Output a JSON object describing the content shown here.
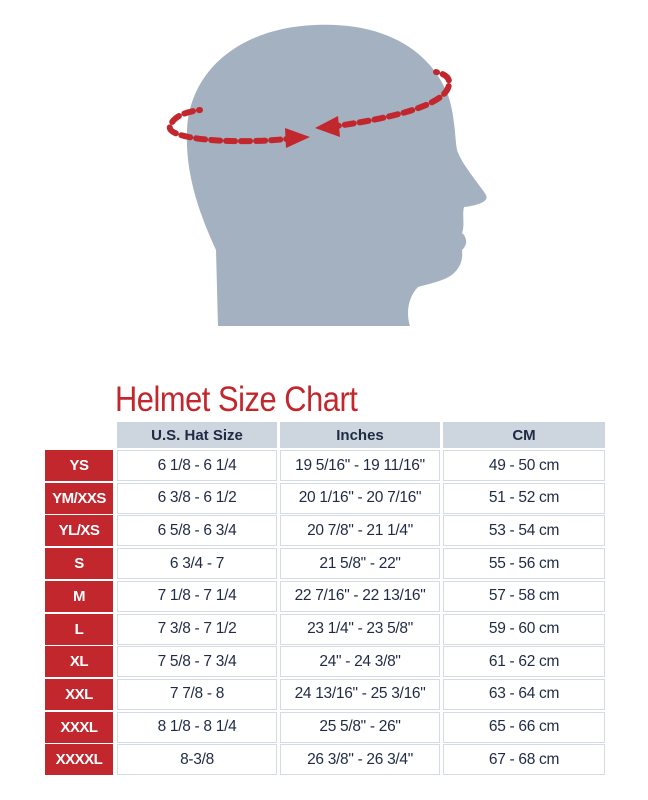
{
  "title": "Helmet Size Chart",
  "colors": {
    "accent": "#c1272d",
    "header_bg": "#cdd6df",
    "head_silhouette": "#a4b1c0",
    "text": "#1f2a44"
  },
  "illustration": {
    "icon": "head-profile-with-measuring-tape"
  },
  "table": {
    "columns": [
      "U.S. Hat Size",
      "Inches",
      "CM"
    ],
    "rows": [
      {
        "size": "YS",
        "hat": "6 1/8 - 6 1/4",
        "inches": "19 5/16\" - 19 11/16\"",
        "cm": "49 - 50 cm"
      },
      {
        "size": "YM/XXS",
        "hat": "6 3/8 - 6 1/2",
        "inches": "20 1/16\" - 20 7/16\"",
        "cm": "51 - 52 cm"
      },
      {
        "size": "YL/XS",
        "hat": "6 5/8 - 6 3/4",
        "inches": "20 7/8\" - 21 1/4\"",
        "cm": "53 - 54 cm"
      },
      {
        "size": "S",
        "hat": "6 3/4 - 7",
        "inches": "21 5/8\" - 22\"",
        "cm": "55 - 56 cm"
      },
      {
        "size": "M",
        "hat": "7 1/8 - 7 1/4",
        "inches": "22 7/16\" - 22 13/16\"",
        "cm": "57 - 58 cm"
      },
      {
        "size": "L",
        "hat": "7 3/8 - 7 1/2",
        "inches": "23 1/4\" - 23 5/8\"",
        "cm": "59 - 60 cm"
      },
      {
        "size": "XL",
        "hat": "7 5/8 - 7 3/4",
        "inches": "24\" - 24 3/8\"",
        "cm": "61 - 62 cm"
      },
      {
        "size": "XXL",
        "hat": "7 7/8 - 8",
        "inches": "24 13/16\" - 25 3/16\"",
        "cm": "63 - 64 cm"
      },
      {
        "size": "XXXL",
        "hat": "8 1/8 - 8 1/4",
        "inches": "25 5/8\" - 26\"",
        "cm": "65 - 66 cm"
      },
      {
        "size": "XXXXL",
        "hat": "8-3/8",
        "inches": "26 3/8\" - 26 3/4\"",
        "cm": "67 - 68 cm"
      }
    ]
  }
}
